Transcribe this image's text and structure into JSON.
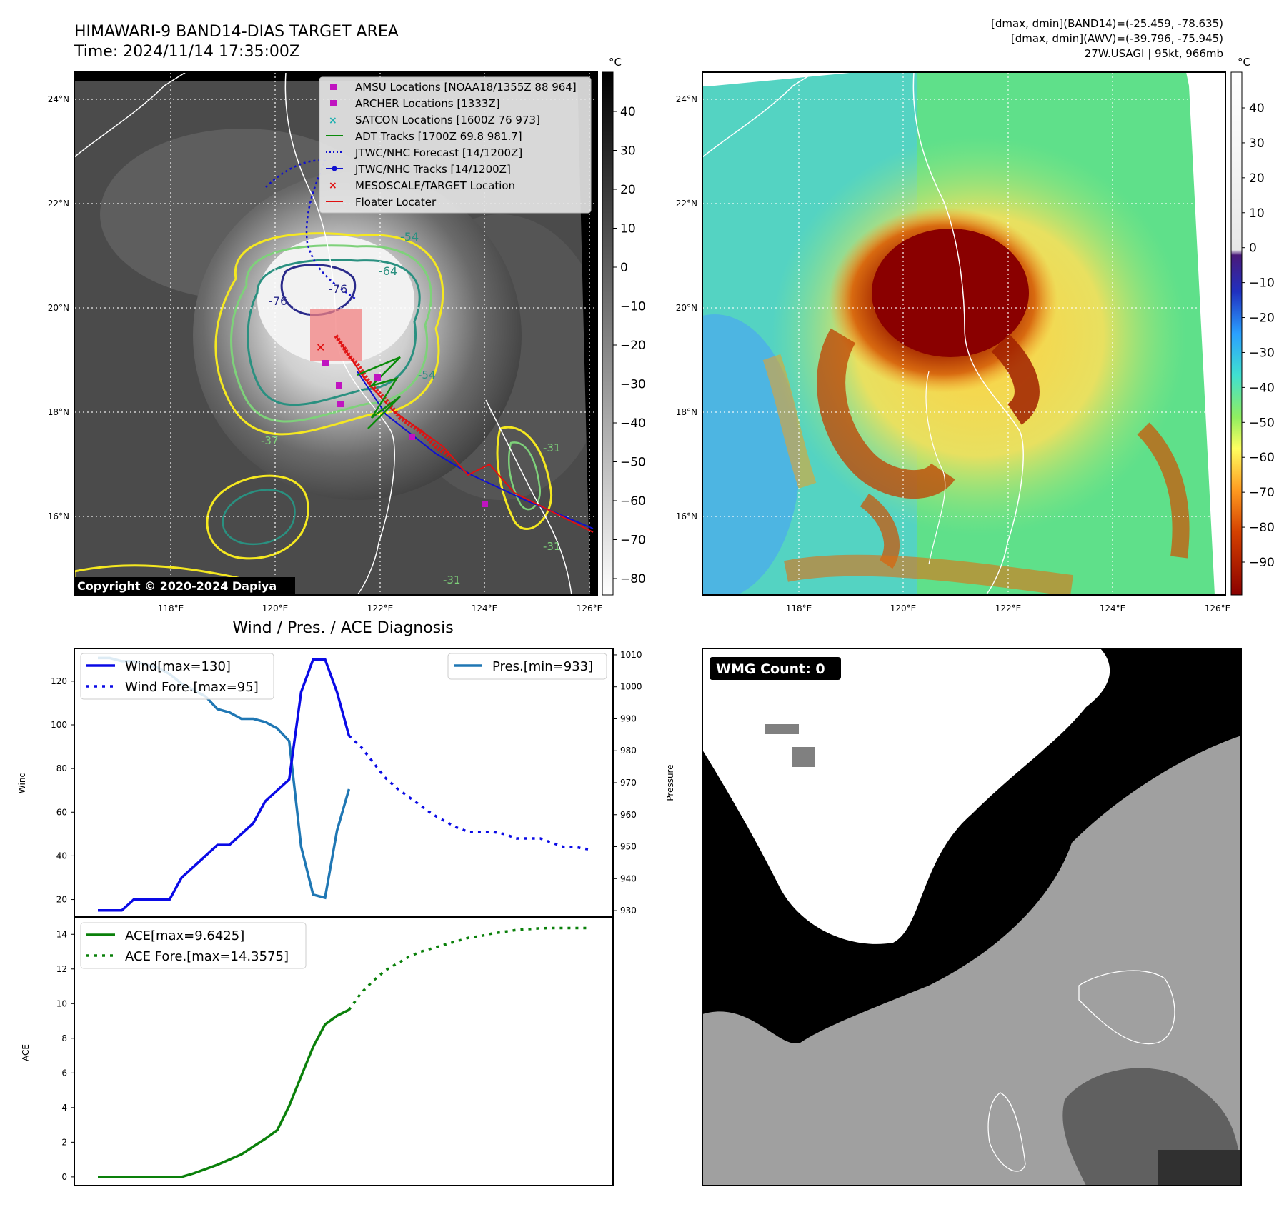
{
  "header": {
    "title": "HIMAWARI-9 BAND14-DIAS TARGET AREA",
    "time": "Time: 2024/11/14 17:35:00Z",
    "stats_band14": "[dmax, dmin](BAND14)=(-25.459, -78.635)",
    "stats_awv": "[dmax, dmin](AWV)=(-39.796, -75.945)",
    "storm": "27W.USAGI | 95kt, 966mb"
  },
  "map": {
    "lat_labels": [
      "24°N",
      "22°N",
      "20°N",
      "18°N",
      "16°N"
    ],
    "lon_labels": [
      "118°E",
      "120°E",
      "122°E",
      "124°E",
      "126°E"
    ],
    "copyright": "Copyright © 2020-2024 Dapiya",
    "legend": [
      "AMSU Locations [NOAA18/1355Z 88 964]",
      "ARCHER Locations [1333Z]",
      "SATCON Locations [1600Z 76 973]",
      "ADT Tracks [1700Z 69.8 981.7]",
      "JTWC/NHC Forecast [14/1200Z]",
      "JTWC/NHC Tracks [14/1200Z]",
      "MESOSCALE/TARGET Location",
      "Floater Locater"
    ],
    "contour_labels": [
      "-76",
      "-54",
      "-64",
      "-76",
      "-31",
      "-31",
      "-31",
      "-37",
      "-54"
    ]
  },
  "colorbars": {
    "unit": "°C",
    "left_ticks": [
      "40",
      "30",
      "20",
      "10",
      "0",
      "−10",
      "−20",
      "−30",
      "−40",
      "−50",
      "−60",
      "−70",
      "−80"
    ],
    "right_ticks": [
      "40",
      "30",
      "20",
      "10",
      "0",
      "−10",
      "−20",
      "−30",
      "−40",
      "−50",
      "−60",
      "−70",
      "−80",
      "−90"
    ]
  },
  "diagnosis": {
    "title": "Wind / Pres. / ACE Diagnosis",
    "wind_label": "Wind",
    "pres_label": "Pressure",
    "ace_label": "ACE",
    "wind_legend": "Wind[max=130]",
    "wind_fore_legend": "Wind Fore.[max=95]",
    "pres_legend": "Pres.[min=933]",
    "ace_legend": "ACE[max=9.6425]",
    "ace_fore_legend": "ACE Fore.[max=14.3575]"
  },
  "wmg": {
    "label": "WMG Count: 0"
  },
  "chart_data": [
    {
      "type": "line",
      "title": "Wind / Pres. / ACE Diagnosis",
      "ylabel": "Wind",
      "ylim": [
        12,
        135
      ],
      "series": [
        {
          "name": "Wind[max=130]",
          "style": "solid",
          "x": [
            0,
            1,
            2,
            3,
            4,
            5,
            6,
            7,
            8,
            9,
            10,
            11,
            12,
            13,
            14,
            15,
            16,
            17,
            18,
            19,
            20,
            21,
            22,
            23
          ],
          "values": [
            15,
            15,
            15,
            20,
            20,
            20,
            20,
            30,
            35,
            40,
            45,
            45,
            50,
            55,
            65,
            70,
            75,
            115,
            130,
            130,
            115,
            95,
            null,
            null
          ]
        }
      ]
    },
    {
      "type": "line",
      "ylabel": "Wind",
      "series": [
        {
          "name": "Wind Fore.[max=95]",
          "x": [
            21,
            22,
            23,
            24,
            25,
            26,
            27,
            28,
            29,
            30,
            31,
            32,
            33,
            34,
            35,
            36,
            37,
            38,
            39,
            40,
            41
          ],
          "values": [
            95,
            90,
            83,
            76,
            71,
            67,
            63,
            59,
            56,
            53,
            51,
            51,
            51,
            50,
            48,
            48,
            48,
            46,
            44,
            44,
            43
          ]
        }
      ]
    },
    {
      "type": "line",
      "ylabel": "Pressure",
      "ylim": [
        928,
        1012
      ],
      "series": [
        {
          "name": "Pres.[min=933]",
          "x": [
            0,
            1,
            2,
            3,
            4,
            5,
            6,
            7,
            8,
            9,
            10,
            11,
            12,
            13,
            14,
            15,
            16,
            17,
            18,
            19,
            20,
            21
          ],
          "values": [
            1009,
            1009,
            1008,
            1008,
            1007,
            1006,
            1004,
            1001,
            999,
            997,
            993,
            992,
            990,
            990,
            989,
            987,
            983,
            950,
            935,
            934,
            955,
            968
          ]
        }
      ]
    },
    {
      "type": "line",
      "ylabel": "ACE",
      "ylim": [
        -0.5,
        15
      ],
      "series": [
        {
          "name": "ACE[max=9.6425]",
          "x": [
            0,
            1,
            2,
            3,
            4,
            5,
            6,
            7,
            8,
            9,
            10,
            11,
            12,
            13,
            14,
            15,
            16,
            17,
            18,
            19,
            20,
            21
          ],
          "values": [
            0,
            0,
            0,
            0,
            0,
            0,
            0,
            0,
            0.2,
            0.45,
            0.7,
            1.0,
            1.3,
            1.75,
            2.2,
            2.7,
            4.1,
            5.8,
            7.5,
            8.8,
            9.3,
            9.64
          ]
        },
        {
          "name": "ACE Fore.[max=14.3575]",
          "x": [
            21,
            22,
            23,
            24,
            25,
            26,
            27,
            28,
            29,
            30,
            31,
            32,
            33,
            34,
            35,
            36,
            37,
            38,
            39,
            40,
            41
          ],
          "values": [
            9.64,
            10.6,
            11.3,
            11.9,
            12.3,
            12.7,
            13.0,
            13.2,
            13.4,
            13.6,
            13.8,
            13.9,
            14.05,
            14.15,
            14.25,
            14.3,
            14.35,
            14.36,
            14.36,
            14.36,
            14.36
          ]
        }
      ]
    }
  ]
}
